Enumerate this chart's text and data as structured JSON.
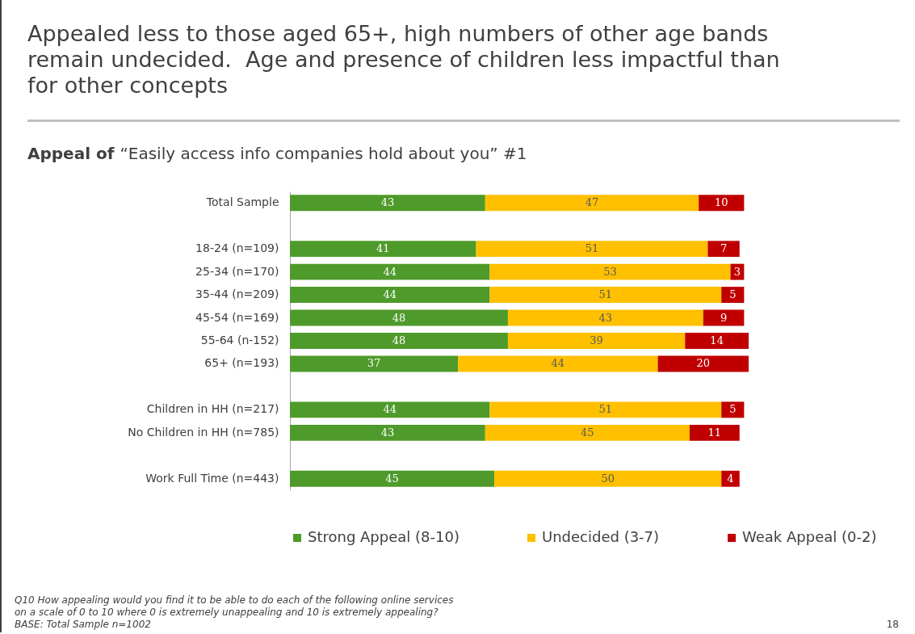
{
  "chart_data": {
    "type": "bar",
    "orientation": "horizontal",
    "stacked": true,
    "data_labels": true,
    "tick_labels": "y",
    "legend": "bottom",
    "grid": false,
    "title": "Appealed less to those aged 65+, high numbers of other age bands remain undecided.  Age and presence of children less impactful than for other concepts",
    "subtitle": "Appeal of “Easily access info companies hold about you” #1",
    "categories": [
      "Total Sample",
      null,
      "18-24 (n=109)",
      "25-34 (n=170)",
      "35-44 (n=209)",
      "45-54 (n=169)",
      "55-64 (n-152)",
      "65+ (n=193)",
      null,
      "Children in HH (n=217)",
      "No Children in HH (n=785)",
      null,
      "Work Full Time (n=443)"
    ],
    "series": [
      {
        "name": "Strong Appeal (8-10)",
        "color": "#4e9a2a",
        "values": [
          43,
          null,
          41,
          44,
          44,
          48,
          48,
          37,
          null,
          44,
          43,
          null,
          45
        ]
      },
      {
        "name": "Undecided (3-7)",
        "color": "#ffc000",
        "values": [
          47,
          null,
          51,
          53,
          51,
          43,
          39,
          44,
          null,
          51,
          45,
          null,
          50
        ]
      },
      {
        "name": "Weak Appeal (0-2)",
        "color": "#c00000",
        "values": [
          10,
          null,
          7,
          3,
          5,
          9,
          14,
          20,
          null,
          5,
          11,
          null,
          4
        ]
      }
    ],
    "annotations": [
      "Q10 How appealing would you find it to be able to do each of the following online services",
      "on a scale of 0 to 10 where 0 is extremely unappealing and 10 is extremely appealing?",
      "BASE: Total Sample n=1002",
      "18"
    ]
  }
}
